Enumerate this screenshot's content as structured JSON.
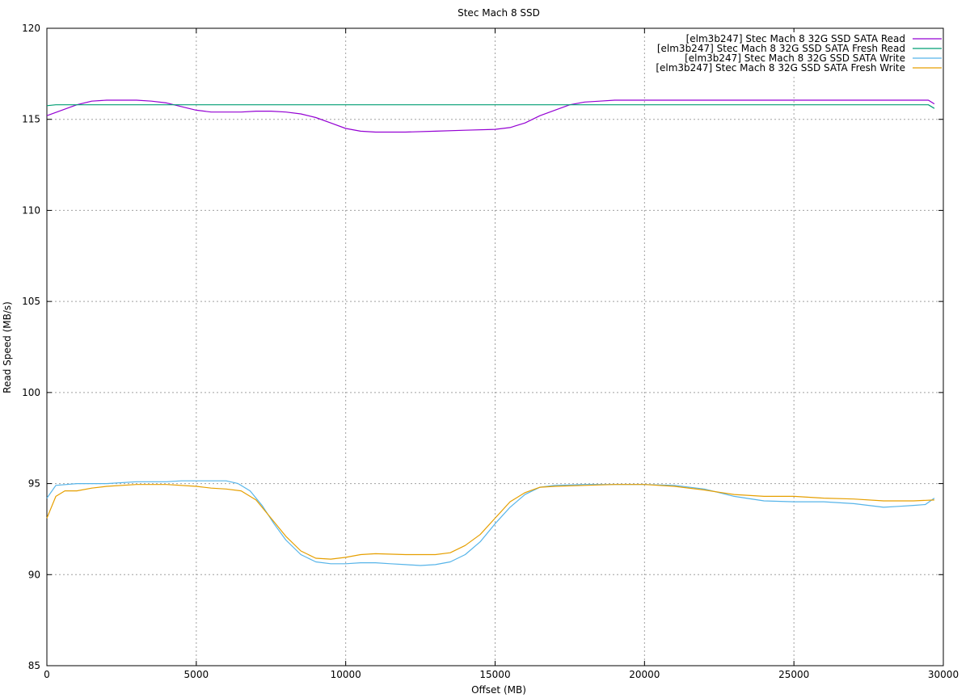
{
  "chart_data": {
    "type": "line",
    "title": "Stec Mach 8 SSD",
    "xlabel": "Offset (MB)",
    "ylabel": "Read Speed (MB/s)",
    "xlim": [
      0,
      30000
    ],
    "ylim": [
      85,
      120
    ],
    "xticks": [
      0,
      5000,
      10000,
      15000,
      20000,
      25000,
      30000
    ],
    "yticks": [
      85,
      90,
      95,
      100,
      105,
      110,
      115,
      120
    ],
    "grid": true,
    "legend_position": "top-right",
    "series": [
      {
        "name": "[elm3b247] Stec Mach 8 32G SSD SATA Read",
        "color": "#9400d3",
        "points": [
          [
            0,
            115.2
          ],
          [
            500,
            115.5
          ],
          [
            1000,
            115.8
          ],
          [
            1500,
            116.0
          ],
          [
            2000,
            116.05
          ],
          [
            3000,
            116.05
          ],
          [
            3500,
            116.0
          ],
          [
            4000,
            115.9
          ],
          [
            4500,
            115.7
          ],
          [
            5000,
            115.5
          ],
          [
            5500,
            115.4
          ],
          [
            6000,
            115.4
          ],
          [
            6500,
            115.4
          ],
          [
            7000,
            115.45
          ],
          [
            7500,
            115.45
          ],
          [
            8000,
            115.4
          ],
          [
            8500,
            115.3
          ],
          [
            9000,
            115.1
          ],
          [
            9500,
            114.8
          ],
          [
            10000,
            114.5
          ],
          [
            10500,
            114.35
          ],
          [
            11000,
            114.3
          ],
          [
            12000,
            114.3
          ],
          [
            13000,
            114.35
          ],
          [
            14000,
            114.4
          ],
          [
            15000,
            114.45
          ],
          [
            15500,
            114.55
          ],
          [
            16000,
            114.8
          ],
          [
            16500,
            115.2
          ],
          [
            17000,
            115.5
          ],
          [
            17500,
            115.8
          ],
          [
            18000,
            115.95
          ],
          [
            18500,
            116.0
          ],
          [
            19000,
            116.05
          ],
          [
            20000,
            116.05
          ],
          [
            25000,
            116.05
          ],
          [
            29500,
            116.05
          ],
          [
            29700,
            115.85
          ]
        ]
      },
      {
        "name": "[elm3b247] Stec Mach 8 32G SSD SATA Fresh Read",
        "color": "#009e73",
        "points": [
          [
            0,
            115.75
          ],
          [
            300,
            115.8
          ],
          [
            5000,
            115.8
          ],
          [
            10000,
            115.8
          ],
          [
            15000,
            115.8
          ],
          [
            20000,
            115.8
          ],
          [
            25000,
            115.8
          ],
          [
            29500,
            115.8
          ],
          [
            29700,
            115.6
          ]
        ]
      },
      {
        "name": "[elm3b247] Stec Mach 8 32G SSD SATA Write",
        "color": "#56b4e9",
        "points": [
          [
            0,
            94.2
          ],
          [
            300,
            94.9
          ],
          [
            1000,
            95.0
          ],
          [
            2000,
            95.0
          ],
          [
            3000,
            95.1
          ],
          [
            4000,
            95.1
          ],
          [
            4500,
            95.15
          ],
          [
            5000,
            95.15
          ],
          [
            5500,
            95.15
          ],
          [
            6000,
            95.15
          ],
          [
            6400,
            95.0
          ],
          [
            6800,
            94.6
          ],
          [
            7200,
            93.8
          ],
          [
            7600,
            92.8
          ],
          [
            8000,
            91.9
          ],
          [
            8500,
            91.1
          ],
          [
            9000,
            90.7
          ],
          [
            9500,
            90.6
          ],
          [
            10000,
            90.6
          ],
          [
            10500,
            90.65
          ],
          [
            11000,
            90.65
          ],
          [
            11500,
            90.6
          ],
          [
            12000,
            90.55
          ],
          [
            12500,
            90.5
          ],
          [
            13000,
            90.55
          ],
          [
            13500,
            90.7
          ],
          [
            14000,
            91.1
          ],
          [
            14500,
            91.8
          ],
          [
            15000,
            92.8
          ],
          [
            15500,
            93.7
          ],
          [
            16000,
            94.4
          ],
          [
            16500,
            94.8
          ],
          [
            17000,
            94.9
          ],
          [
            18000,
            94.95
          ],
          [
            19000,
            94.95
          ],
          [
            20000,
            94.95
          ],
          [
            21000,
            94.9
          ],
          [
            22000,
            94.7
          ],
          [
            23000,
            94.3
          ],
          [
            24000,
            94.05
          ],
          [
            25000,
            94.0
          ],
          [
            26000,
            94.0
          ],
          [
            27000,
            93.9
          ],
          [
            27500,
            93.8
          ],
          [
            28000,
            93.7
          ],
          [
            28500,
            93.75
          ],
          [
            29000,
            93.8
          ],
          [
            29400,
            93.85
          ],
          [
            29700,
            94.2
          ]
        ]
      },
      {
        "name": "[elm3b247] Stec Mach 8 32G SSD SATA Fresh Write",
        "color": "#e69f00",
        "points": [
          [
            0,
            93.1
          ],
          [
            300,
            94.3
          ],
          [
            600,
            94.6
          ],
          [
            1000,
            94.6
          ],
          [
            1500,
            94.75
          ],
          [
            2000,
            94.85
          ],
          [
            3000,
            94.95
          ],
          [
            4000,
            94.95
          ],
          [
            5000,
            94.85
          ],
          [
            5500,
            94.75
          ],
          [
            6000,
            94.7
          ],
          [
            6500,
            94.6
          ],
          [
            7000,
            94.1
          ],
          [
            7500,
            93.1
          ],
          [
            8000,
            92.1
          ],
          [
            8500,
            91.3
          ],
          [
            9000,
            90.9
          ],
          [
            9500,
            90.85
          ],
          [
            10000,
            90.95
          ],
          [
            10500,
            91.1
          ],
          [
            11000,
            91.15
          ],
          [
            12000,
            91.1
          ],
          [
            13000,
            91.1
          ],
          [
            13500,
            91.2
          ],
          [
            14000,
            91.6
          ],
          [
            14500,
            92.2
          ],
          [
            15000,
            93.1
          ],
          [
            15500,
            94.0
          ],
          [
            16000,
            94.5
          ],
          [
            16500,
            94.8
          ],
          [
            17000,
            94.85
          ],
          [
            18000,
            94.9
          ],
          [
            19000,
            94.95
          ],
          [
            20000,
            94.95
          ],
          [
            21000,
            94.85
          ],
          [
            22000,
            94.65
          ],
          [
            23000,
            94.4
          ],
          [
            24000,
            94.3
          ],
          [
            25000,
            94.3
          ],
          [
            26000,
            94.2
          ],
          [
            27000,
            94.15
          ],
          [
            28000,
            94.05
          ],
          [
            29000,
            94.05
          ],
          [
            29700,
            94.1
          ]
        ]
      }
    ]
  }
}
